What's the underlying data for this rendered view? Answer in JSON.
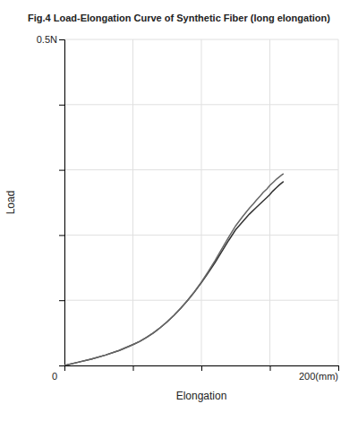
{
  "chart_data": {
    "type": "line",
    "title": "Fig.4 Load-Elongation Curve of Synthetic Fiber (long elongation)",
    "x_label": "Elongation",
    "y_label": "Load",
    "annotations": [
      {
        "text": "0",
        "x": 0,
        "y": 0
      },
      {
        "text": "0.5N",
        "x": 0,
        "y": 0.5
      },
      {
        "text": "200(mm)",
        "x": 200,
        "y": 0
      }
    ],
    "xlim": [
      0,
      200
    ],
    "ylim": [
      0,
      0.5
    ],
    "xticks": [
      0,
      50,
      100,
      150,
      200
    ],
    "yticks": [
      0,
      0.1,
      0.2,
      0.3,
      0.4,
      0.5
    ],
    "grid": true,
    "tick_labels": false,
    "series": [
      {
        "color": "#333333",
        "x": [
          0,
          10,
          20,
          30,
          40,
          50,
          55,
          60,
          65,
          70,
          75,
          80,
          85,
          90,
          95,
          100,
          105,
          110,
          115,
          120,
          125,
          130,
          135,
          140,
          145,
          148,
          150,
          152,
          155,
          157,
          160
        ],
        "values": [
          0,
          0.005,
          0.01,
          0.016,
          0.023,
          0.032,
          0.037,
          0.043,
          0.05,
          0.058,
          0.067,
          0.077,
          0.088,
          0.1,
          0.113,
          0.127,
          0.142,
          0.158,
          0.175,
          0.192,
          0.208,
          0.22,
          0.232,
          0.242,
          0.252,
          0.258,
          0.262,
          0.267,
          0.273,
          0.277,
          0.282
        ]
      },
      {
        "color": "#666666",
        "x": [
          0,
          10,
          20,
          30,
          40,
          50,
          55,
          60,
          65,
          70,
          75,
          80,
          85,
          90,
          95,
          100,
          105,
          110,
          115,
          120,
          125,
          130,
          135,
          138,
          140,
          143,
          145,
          148,
          150,
          153,
          155,
          158,
          160
        ],
        "values": [
          0,
          0.005,
          0.01,
          0.016,
          0.023,
          0.032,
          0.037,
          0.043,
          0.05,
          0.058,
          0.067,
          0.077,
          0.088,
          0.1,
          0.113,
          0.128,
          0.144,
          0.161,
          0.179,
          0.197,
          0.214,
          0.228,
          0.241,
          0.248,
          0.253,
          0.26,
          0.265,
          0.271,
          0.276,
          0.282,
          0.286,
          0.291,
          0.294
        ]
      }
    ]
  }
}
